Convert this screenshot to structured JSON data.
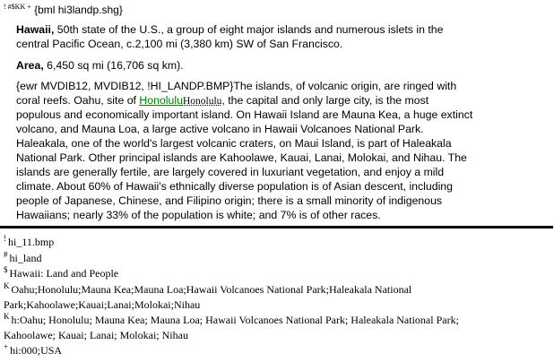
{
  "header_marks": "! #$KK +",
  "header_code": "{bml hi3landp.shg}",
  "intro": {
    "term": "Hawaii,",
    "line1": " 50th state of the U.S., a group of eight major islands and numerous islets in the",
    "line2": "central Pacific Ocean, c.2,100 mi (3,380 km) SW of San Francisco."
  },
  "area": {
    "term": "Area,",
    "text": " 6,450 sq mi (16,706 sq km)."
  },
  "para": {
    "line0": "{ewr MVDIB12, MVDIB12, !HI_LANDP.BMP}The islands, of volcanic origin, are ringed with",
    "line1_pre": "coral reefs. Oahu, site of ",
    "link": "Honolulu",
    "hidden": "Honolulu",
    "line1_post": ", the capital and only large city, is the most",
    "rest": [
      "populous and economically important island.  On Hawaii Island are Mauna Kea, a huge extinct",
      "volcano, and Mauna Loa, a large active volcano in Hawaii Volcanoes National Park.",
      "Haleakala, one of the world's largest volcanic craters, on Maui Island, is part of Haleakala",
      "National Park. Other principal islands are Kahoolawe, Kauai, Lanai, Molokai, and Nihau. The",
      "islands are generally fertile, are largely covered in luxuriant vegetation, and enjoy a mild",
      "climate. About 60% of Hawaii's ethnically diverse population is of Asian descent, including",
      "people of Japanese, Chinese, and Filipino origin; there is a small minority of indigenous",
      "Hawaiians; nearly 33% of the population is white; and 7% is of other races."
    ]
  },
  "footnotes": [
    {
      "mark": "!",
      "text": "hi_11.bmp"
    },
    {
      "mark": "#",
      "text": "hi_land"
    },
    {
      "mark": "$",
      "text": "Hawaii:  Land and People"
    },
    {
      "mark": "K",
      "text": "Oahu;Honolulu;Mauna Kea;Mauna Loa;Hawaii Volcanoes National Park;Haleakala National",
      "cont": "Park;Kahoolawe;Kauai;Lanai;Molokai;Nihau"
    },
    {
      "mark": "K",
      "text": "h:Oahu; Honolulu; Mauna Kea; Mauna Loa; Hawaii Volcanoes National Park; Haleakala National Park;",
      "cont": "Kahoolawe; Kauai;  Lanai; Molokai; Nihau"
    },
    {
      "mark": "+",
      "text": "hi:000;USA"
    }
  ]
}
